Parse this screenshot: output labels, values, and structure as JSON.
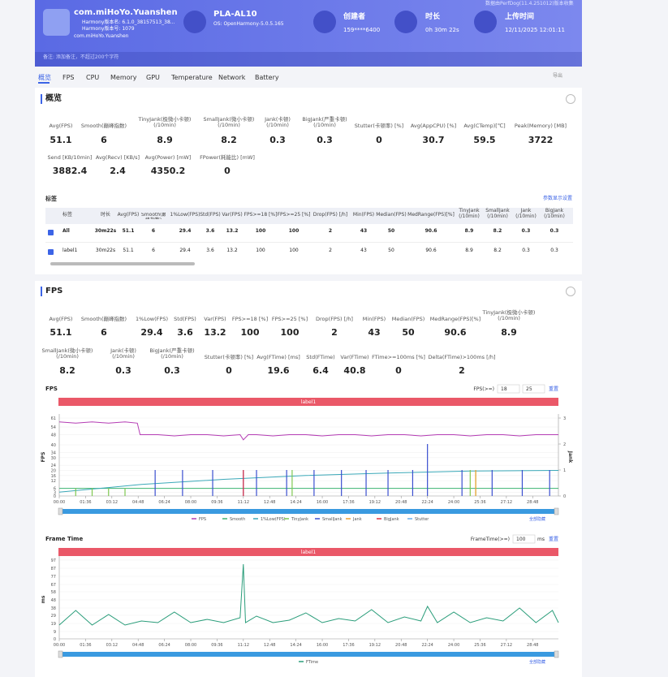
{
  "header": {
    "app_name": "com.miHoYo.Yuanshen",
    "version_name": "Harmony版本名: 6.1.0_38157513_38...",
    "version_code": "Harmony版本号: 1079",
    "package": "com.miHoYo.Yuanshen",
    "device": "PLA-AL10",
    "os": "OS: OpenHarmony-5.0.5.165",
    "creator_label": "创建者",
    "creator": "159****6400",
    "duration_label": "时长",
    "duration": "0h 30m 22s",
    "upload_label": "上传时间",
    "upload_time": "12/11/2025 12:01:11",
    "collector": "数据由PerfDog(11.4.251012)版本收集",
    "remark": "备注: 添加备注，不超过200个字符"
  },
  "tabs": [
    "概览",
    "FPS",
    "CPU",
    "Memory",
    "GPU",
    "Temperature",
    "Network",
    "Battery"
  ],
  "export": "导出",
  "overview": {
    "title": "概览",
    "metrics": [
      {
        "label": "Avg(FPS)",
        "value": 51.1
      },
      {
        "label": "Smooth(巅峰指数)",
        "value": 6
      },
      {
        "label": "TinyJank(极微小卡顿)\n(/10min)",
        "value": 8.9
      },
      {
        "label": "SmallJank(微小卡顿)\n(/10min)",
        "value": 8.2
      },
      {
        "label": "Jank(卡顿)\n(/10min)",
        "value": 0.3
      },
      {
        "label": "BigJank(严重卡顿)\n(/10min)",
        "value": 0.3
      },
      {
        "label": "Stutter(卡顿率) [%]",
        "value": 0
      },
      {
        "label": "Avg(AppCPU) [%]",
        "value": 30.7
      },
      {
        "label": "Avg(CTemp)[℃]",
        "value": 59.5
      },
      {
        "label": "Peak(Memory) [MB]",
        "value": 3722
      },
      {
        "label": "Send [KB/10min]",
        "value": 3882.4
      },
      {
        "label": "Avg(Recv) [KB/s]",
        "value": 2.4
      },
      {
        "label": "Avg(Power) [mW]",
        "value": 4350.2
      },
      {
        "label": "FPower(耗能比) [mW]",
        "value": 0
      }
    ],
    "labels_title": "标签",
    "settings_link": "参数显示设置",
    "table": {
      "columns": [
        "标签",
        "时长",
        "Avg(FPS)",
        "Smooth(巅峰指数)",
        "1%Low(FPS)",
        "Std(FPS)",
        "Var(FPS)",
        "FPS>=18 [%]",
        "FPS>=25 [%]",
        "Drop(FPS) [/h]",
        "Min(FPS)",
        "Median(FPS)",
        "MedRange(FPS)[%]",
        "TinyJank\n(/10min)",
        "SmallJank\n(/10min)",
        "Jank\n(/10min)",
        "BigJank\n(/10min)"
      ],
      "rows": [
        [
          "All",
          "30m22s",
          51.1,
          6,
          29.4,
          3.6,
          13.2,
          100,
          100,
          2,
          43,
          50,
          90.6,
          8.9,
          8.2,
          0.3,
          0.3
        ],
        [
          "label1",
          "30m22s",
          51.1,
          6,
          29.4,
          3.6,
          13.2,
          100,
          100,
          2,
          43,
          50,
          90.6,
          8.9,
          8.2,
          0.3,
          0.3
        ]
      ]
    }
  },
  "fps_section": {
    "title": "FPS",
    "metrics": [
      {
        "label": "Avg(FPS)",
        "value": 51.1
      },
      {
        "label": "Smooth(巅峰指数)",
        "value": 6
      },
      {
        "label": "1%Low(FPS)",
        "value": 29.4
      },
      {
        "label": "Std(FPS)",
        "value": 3.6
      },
      {
        "label": "Var(FPS)",
        "value": 13.2
      },
      {
        "label": "FPS>=18 [%]",
        "value": 100
      },
      {
        "label": "FPS>=25 [%]",
        "value": 100
      },
      {
        "label": "Drop(FPS) [/h]",
        "value": 2
      },
      {
        "label": "Min(FPS)",
        "value": 43
      },
      {
        "label": "Median(FPS)",
        "value": 50
      },
      {
        "label": "MedRange(FPS)[%]",
        "value": 90.6
      },
      {
        "label": "TinyJank(极微小卡顿)\n(/10min)",
        "value": 8.9
      },
      {
        "label": "SmallJank(微小卡顿)\n(/10min)",
        "value": 8.2
      },
      {
        "label": "Jank(卡顿)\n(/10min)",
        "value": 0.3
      },
      {
        "label": "BigJank(严重卡顿)\n(/10min)",
        "value": 0.3
      },
      {
        "label": "Stutter(卡顿率) [%]",
        "value": 0
      },
      {
        "label": "Avg(FTime) [ms]",
        "value": 19.6
      },
      {
        "label": "Std(FTime)",
        "value": 6.4
      },
      {
        "label": "Var(FTime)",
        "value": 40.8
      },
      {
        "label": "FTime>=100ms [%]",
        "value": 0
      },
      {
        "label": "Delta(FTime)>100ms [/h]",
        "value": 2
      }
    ]
  },
  "chart_data": [
    {
      "type": "line",
      "title": "FPS",
      "threshold_label": "FPS(>=)",
      "thresholds": [
        18,
        25
      ],
      "reset": "重置",
      "band_label": "label1",
      "ylabel": "FPS",
      "y2label": "Jank",
      "hide_all": "全部隐藏",
      "xlim": [
        0,
        1822
      ],
      "xticks": [
        {
          "value": 0,
          "label": "00:00"
        },
        {
          "value": 96,
          "label": "01:36"
        },
        {
          "value": 192,
          "label": "03:12"
        },
        {
          "value": 288,
          "label": "04:48"
        },
        {
          "value": 384,
          "label": "06:24"
        },
        {
          "value": 480,
          "label": "08:00"
        },
        {
          "value": 576,
          "label": "09:36"
        },
        {
          "value": 672,
          "label": "11:12"
        },
        {
          "value": 768,
          "label": "12:48"
        },
        {
          "value": 864,
          "label": "14:24"
        },
        {
          "value": 960,
          "label": "16:00"
        },
        {
          "value": 1056,
          "label": "17:36"
        },
        {
          "value": 1152,
          "label": "19:12"
        },
        {
          "value": 1248,
          "label": "20:48"
        },
        {
          "value": 1344,
          "label": "22:24"
        },
        {
          "value": 1440,
          "label": "24:00"
        },
        {
          "value": 1536,
          "label": "25:36"
        },
        {
          "value": 1632,
          "label": "27:12"
        },
        {
          "value": 1728,
          "label": "28:48"
        }
      ],
      "ylim": [
        0,
        61
      ],
      "yticks": [
        0,
        3,
        6,
        12,
        16,
        20,
        24,
        30,
        34,
        40,
        48,
        54,
        61
      ],
      "y2lim": [
        0,
        3
      ],
      "y2ticks": [
        0,
        1,
        2,
        3
      ],
      "series": [
        {
          "name": "FPS",
          "color": "#b43cb4",
          "type": "line",
          "x": [
            0,
            60,
            120,
            180,
            240,
            285,
            295,
            360,
            420,
            480,
            540,
            600,
            660,
            672,
            690,
            720,
            780,
            840,
            900,
            960,
            1020,
            1080,
            1140,
            1200,
            1260,
            1320,
            1380,
            1440,
            1500,
            1560,
            1620,
            1680,
            1740,
            1800,
            1822
          ],
          "values": [
            58,
            57,
            58,
            57,
            58,
            57,
            48,
            48,
            47,
            48,
            48,
            47,
            48,
            44,
            48,
            48,
            47,
            48,
            48,
            47,
            48,
            48,
            47,
            48,
            48,
            47,
            48,
            48,
            47,
            48,
            48,
            47,
            48,
            48,
            48
          ]
        },
        {
          "name": "Smooth",
          "color": "#3cb371",
          "type": "line",
          "x": [
            0,
            1822
          ],
          "values": [
            6,
            6
          ]
        },
        {
          "name": "1%Low(FPS)",
          "color": "#3aa8b8",
          "type": "line",
          "x": [
            0,
            300,
            600,
            900,
            1200,
            1500,
            1822
          ],
          "values": [
            3,
            9,
            13,
            16,
            18,
            19.5,
            20
          ]
        },
        {
          "name": "TinyJank",
          "color": "#7ec850",
          "type": "bar",
          "axis": "y2",
          "x": [
            60,
            120,
            180,
            240,
            850,
            1500,
            1520
          ],
          "values": [
            0.3,
            0.3,
            0.3,
            0.3,
            1,
            1,
            1
          ]
        },
        {
          "name": "SmallJank",
          "color": "#3a4fd0",
          "type": "bar",
          "axis": "y2",
          "x": [
            350,
            450,
            560,
            672,
            720,
            830,
            930,
            1030,
            1120,
            1200,
            1290,
            1344,
            1470,
            1580,
            1690,
            1790
          ],
          "values": [
            1,
            1,
            1,
            1,
            1,
            1,
            1,
            1,
            1,
            1,
            1,
            2,
            1,
            1,
            1,
            1
          ]
        },
        {
          "name": "Jank",
          "color": "#f0a030",
          "type": "bar",
          "axis": "y2",
          "x": [
            1520
          ],
          "values": [
            1
          ]
        },
        {
          "name": "BigJank",
          "color": "#e03040",
          "type": "bar",
          "axis": "y2",
          "x": [
            672
          ],
          "values": [
            1
          ]
        },
        {
          "name": "Stutter",
          "color": "#6aaee8",
          "type": "bar",
          "axis": "y2",
          "x": [],
          "values": []
        }
      ]
    },
    {
      "type": "line",
      "title": "Frame Time",
      "threshold_label": "FrameTime(>=)",
      "thresholds": [
        100
      ],
      "unit": "ms",
      "reset": "重置",
      "band_label": "label1",
      "ylabel": "ms",
      "hide_all": "全部隐藏",
      "xlim": [
        0,
        1822
      ],
      "xticks": [
        {
          "value": 0,
          "label": "00:00"
        },
        {
          "value": 96,
          "label": "01:36"
        },
        {
          "value": 192,
          "label": "03:12"
        },
        {
          "value": 288,
          "label": "04:48"
        },
        {
          "value": 384,
          "label": "06:24"
        },
        {
          "value": 480,
          "label": "08:00"
        },
        {
          "value": 576,
          "label": "09:36"
        },
        {
          "value": 672,
          "label": "11:12"
        },
        {
          "value": 768,
          "label": "12:48"
        },
        {
          "value": 864,
          "label": "14:24"
        },
        {
          "value": 960,
          "label": "16:00"
        },
        {
          "value": 1056,
          "label": "17:36"
        },
        {
          "value": 1152,
          "label": "19:12"
        },
        {
          "value": 1248,
          "label": "20:48"
        },
        {
          "value": 1344,
          "label": "22:24"
        },
        {
          "value": 1440,
          "label": "24:00"
        },
        {
          "value": 1536,
          "label": "25:36"
        },
        {
          "value": 1632,
          "label": "27:12"
        },
        {
          "value": 1728,
          "label": "28:48"
        }
      ],
      "ylim": [
        0,
        97
      ],
      "yticks": [
        0,
        9,
        19,
        29,
        38,
        48,
        58,
        67,
        77,
        87,
        97
      ],
      "series": [
        {
          "name": "FTime",
          "color": "#2a9d7a",
          "type": "line",
          "x": [
            0,
            60,
            120,
            180,
            240,
            300,
            360,
            420,
            480,
            540,
            600,
            660,
            672,
            680,
            720,
            780,
            840,
            900,
            960,
            1020,
            1080,
            1140,
            1200,
            1260,
            1320,
            1344,
            1380,
            1440,
            1500,
            1560,
            1620,
            1680,
            1740,
            1800,
            1822
          ],
          "values": [
            17,
            35,
            17,
            30,
            17,
            22,
            20,
            33,
            20,
            24,
            20,
            26,
            92,
            20,
            28,
            20,
            23,
            32,
            20,
            25,
            22,
            36,
            20,
            27,
            22,
            40,
            20,
            33,
            20,
            26,
            22,
            38,
            20,
            35,
            20
          ]
        }
      ]
    }
  ]
}
